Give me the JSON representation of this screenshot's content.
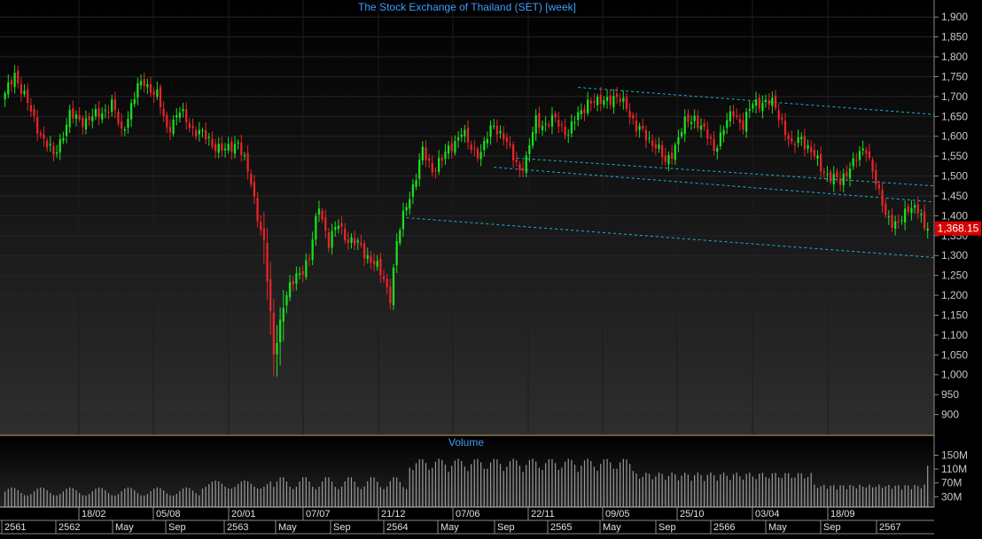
{
  "chart_data": {
    "type": "candlestick",
    "title": "The Stock Exchange of Thailand (SET) [week]",
    "volume_label": "Volume",
    "last_price_label": "1,368.15",
    "last_price": 1368.15,
    "ylim": [
      850,
      1925
    ],
    "y_ticks": [
      {
        "v": 1900,
        "l": "1,900"
      },
      {
        "v": 1850,
        "l": "1,850"
      },
      {
        "v": 1800,
        "l": "1,800"
      },
      {
        "v": 1750,
        "l": "1,750"
      },
      {
        "v": 1700,
        "l": "1,700"
      },
      {
        "v": 1650,
        "l": "1,650"
      },
      {
        "v": 1600,
        "l": "1,600"
      },
      {
        "v": 1550,
        "l": "1,550"
      },
      {
        "v": 1500,
        "l": "1,500"
      },
      {
        "v": 1450,
        "l": "1,450"
      },
      {
        "v": 1400,
        "l": "1,400"
      },
      {
        "v": 1350,
        "l": "1,350"
      },
      {
        "v": 1300,
        "l": "1,300"
      },
      {
        "v": 1250,
        "l": "1,250"
      },
      {
        "v": 1200,
        "l": "1,200"
      },
      {
        "v": 1150,
        "l": "1,150"
      },
      {
        "v": 1100,
        "l": "1,100"
      },
      {
        "v": 1050,
        "l": "1,050"
      },
      {
        "v": 1000,
        "l": "1,000"
      },
      {
        "v": 950,
        "l": "950"
      },
      {
        "v": 900,
        "l": "900"
      }
    ],
    "volume_ylim": [
      0,
      200
    ],
    "volume_ticks": [
      {
        "v": 150,
        "l": "150M"
      },
      {
        "v": 110,
        "l": "110M"
      },
      {
        "v": 70,
        "l": "70M"
      },
      {
        "v": 30,
        "l": "30M"
      }
    ],
    "x_upper_labels": [
      "18/02",
      "05/08",
      "20/01",
      "07/07",
      "21/12",
      "07/06",
      "22/11",
      "09/05",
      "25/10",
      "03/04",
      "18/09"
    ],
    "x_lower_labels": [
      "2561",
      "2562",
      "May",
      "Sep",
      "2563",
      "May",
      "Sep",
      "2564",
      "May",
      "Sep",
      "2565",
      "May",
      "Sep",
      "2566",
      "May",
      "Sep",
      "2567"
    ],
    "price_anchors": [
      [
        0,
        1700
      ],
      [
        3,
        1760
      ],
      [
        8,
        1660
      ],
      [
        12,
        1590
      ],
      [
        15,
        1550
      ],
      [
        20,
        1650
      ],
      [
        25,
        1640
      ],
      [
        28,
        1650
      ],
      [
        33,
        1680
      ],
      [
        36,
        1610
      ],
      [
        41,
        1720
      ],
      [
        43,
        1740
      ],
      [
        47,
        1700
      ],
      [
        50,
        1620
      ],
      [
        54,
        1660
      ],
      [
        58,
        1620
      ],
      [
        63,
        1590
      ],
      [
        68,
        1560
      ],
      [
        72,
        1590
      ],
      [
        76,
        1480
      ],
      [
        80,
        1330
      ],
      [
        83,
        1050
      ],
      [
        86,
        1180
      ],
      [
        90,
        1250
      ],
      [
        94,
        1290
      ],
      [
        97,
        1430
      ],
      [
        100,
        1330
      ],
      [
        103,
        1380
      ],
      [
        106,
        1340
      ],
      [
        110,
        1320
      ],
      [
        114,
        1280
      ],
      [
        117,
        1240
      ],
      [
        119,
        1200
      ],
      [
        121,
        1330
      ],
      [
        124,
        1430
      ],
      [
        127,
        1500
      ],
      [
        129,
        1560
      ],
      [
        132,
        1520
      ],
      [
        135,
        1540
      ],
      [
        138,
        1580
      ],
      [
        141,
        1610
      ],
      [
        144,
        1570
      ],
      [
        147,
        1560
      ],
      [
        151,
        1630
      ],
      [
        154,
        1600
      ],
      [
        156,
        1560
      ],
      [
        159,
        1520
      ],
      [
        161,
        1540
      ],
      [
        164,
        1640
      ],
      [
        167,
        1630
      ],
      [
        170,
        1640
      ],
      [
        174,
        1610
      ],
      [
        177,
        1650
      ],
      [
        180,
        1690
      ],
      [
        183,
        1680
      ],
      [
        186,
        1700
      ],
      [
        189,
        1690
      ],
      [
        192,
        1680
      ],
      [
        195,
        1620
      ],
      [
        198,
        1600
      ],
      [
        201,
        1580
      ],
      [
        204,
        1530
      ],
      [
        207,
        1580
      ],
      [
        210,
        1630
      ],
      [
        213,
        1650
      ],
      [
        216,
        1610
      ],
      [
        219,
        1570
      ],
      [
        222,
        1620
      ],
      [
        225,
        1660
      ],
      [
        228,
        1630
      ],
      [
        231,
        1680
      ],
      [
        234,
        1690
      ],
      [
        237,
        1680
      ],
      [
        240,
        1640
      ],
      [
        243,
        1570
      ],
      [
        246,
        1600
      ],
      [
        249,
        1560
      ],
      [
        252,
        1520
      ],
      [
        255,
        1500
      ],
      [
        258,
        1480
      ],
      [
        261,
        1530
      ],
      [
        264,
        1550
      ],
      [
        266,
        1570
      ],
      [
        268,
        1520
      ],
      [
        270,
        1450
      ],
      [
        272,
        1400
      ],
      [
        274,
        1390
      ],
      [
        276,
        1380
      ],
      [
        278,
        1400
      ],
      [
        280,
        1430
      ],
      [
        282,
        1420
      ],
      [
        284,
        1375
      ]
    ],
    "trend_lines": [
      {
        "x1": 177,
        "y1": 1723,
        "x2": 314,
        "y2": 1655
      },
      {
        "x1": 158,
        "y1": 1545,
        "x2": 314,
        "y2": 1475
      },
      {
        "x1": 151,
        "y1": 1522,
        "x2": 314,
        "y2": 1435
      },
      {
        "x1": 124,
        "y1": 1395,
        "x2": 314,
        "y2": 1295
      }
    ],
    "colors": {
      "up": "#19e01e",
      "down": "#e8242b",
      "title": "#3f9cff",
      "axis_text": "#c8c8c8",
      "trend": "#15b4d0",
      "divider": "#d8c06a",
      "price_tag_bg": "#d80000",
      "volume_bar": "#9a9a9a"
    }
  }
}
